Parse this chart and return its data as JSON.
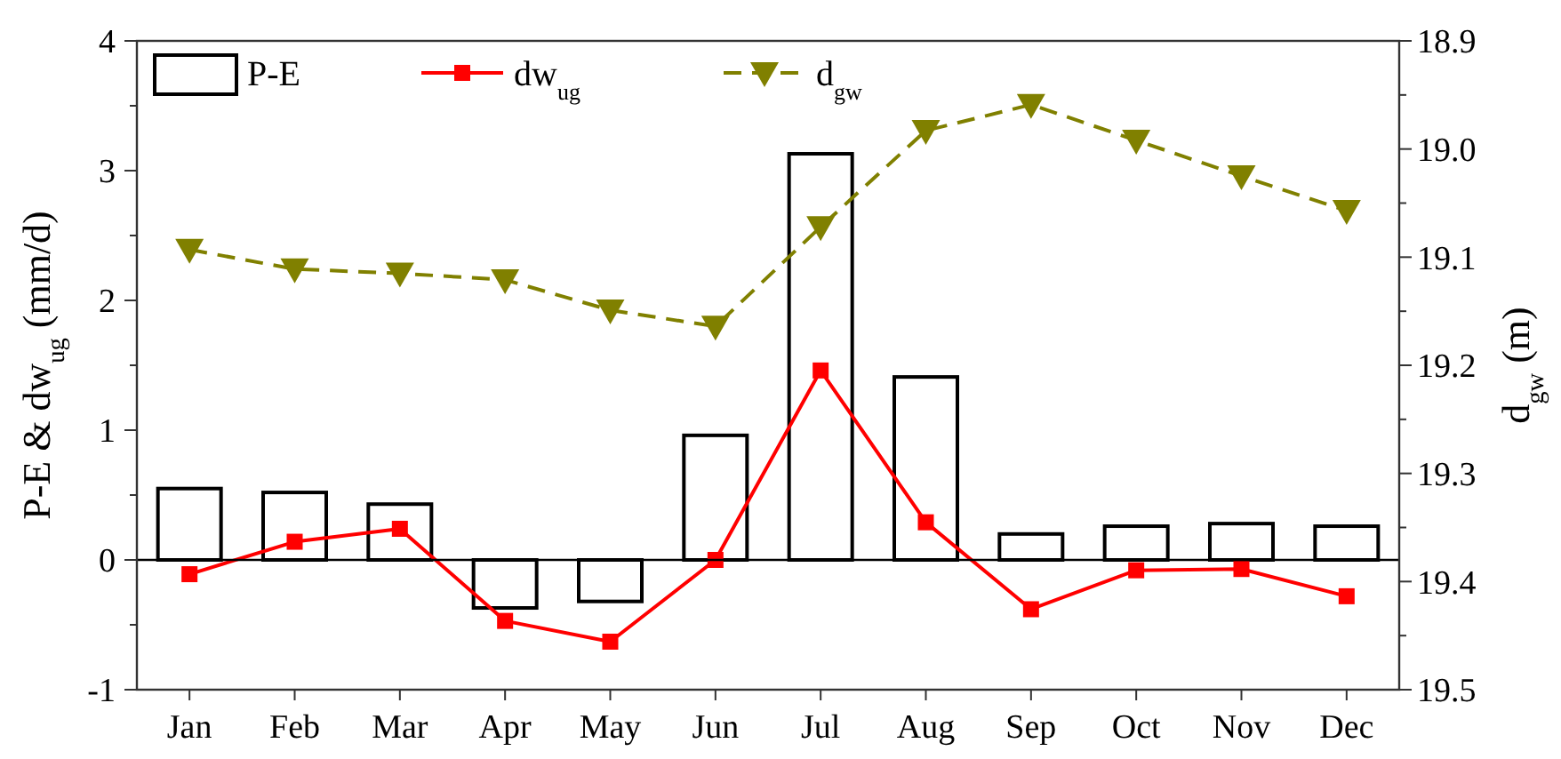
{
  "chart_data": {
    "type": "bar",
    "categories": [
      "Jan",
      "Feb",
      "Mar",
      "Apr",
      "May",
      "Jun",
      "Jul",
      "Aug",
      "Sep",
      "Oct",
      "Nov",
      "Dec"
    ],
    "ylabel": "P-E & dw$_{ug}$ (mm/d)",
    "y2label": "d$_{gw}$ (m)",
    "ylim": [
      -1,
      4
    ],
    "yticks": [
      -1,
      {
        "value": -0.5,
        "label": null
      },
      0,
      {
        "value": 0.5,
        "label": null
      },
      1,
      {
        "value": 1.5,
        "label": null
      },
      2,
      {
        "value": 2.5,
        "label": null
      },
      3,
      {
        "value": 3.5,
        "label": null
      },
      4
    ],
    "y2lim": [
      19.5,
      18.9
    ],
    "y2ticks": [
      {
        "value": 18.9,
        "label": "18.9"
      },
      {
        "value": 18.95,
        "label": null
      },
      {
        "value": 19.0,
        "label": "19.0"
      },
      {
        "value": 19.05,
        "label": null
      },
      {
        "value": 19.1,
        "label": "19.1"
      },
      {
        "value": 19.15,
        "label": null
      },
      {
        "value": 19.2,
        "label": "19.2"
      },
      {
        "value": 19.25,
        "label": null
      },
      {
        "value": 19.3,
        "label": "19.3"
      },
      {
        "value": 19.35,
        "label": null
      },
      {
        "value": 19.4,
        "label": "19.4"
      },
      {
        "value": 19.45,
        "label": null
      },
      {
        "value": 19.5,
        "label": "19.5"
      }
    ],
    "legend": "top left",
    "series": [
      {
        "name": "P-E",
        "color": "#000000",
        "values": [
          0.55,
          0.52,
          0.43,
          -0.37,
          -0.32,
          0.96,
          3.13,
          1.41,
          0.2,
          0.26,
          0.28,
          0.26
        ]
      },
      {
        "name": "dw$_{ug}$",
        "type": "line",
        "color": "#ff0000",
        "marker": "square",
        "line_style": "solid",
        "values": [
          -0.11,
          0.14,
          0.24,
          -0.47,
          -0.63,
          0.0,
          1.46,
          0.29,
          -0.38,
          -0.08,
          -0.07,
          -0.28
        ]
      },
      {
        "name": "d$_{gw}$",
        "type": "line",
        "axis": "y2",
        "color": "#808000",
        "marker": "triangle",
        "line_style": "dashed",
        "values": [
          19.093,
          19.111,
          19.115,
          19.121,
          19.149,
          19.164,
          19.072,
          18.983,
          18.959,
          18.992,
          19.025,
          19.057
        ]
      }
    ]
  }
}
